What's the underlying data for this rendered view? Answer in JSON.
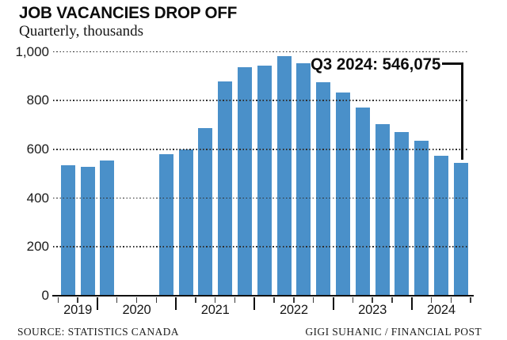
{
  "header": {
    "title": "JOB VACANCIES DROP OFF",
    "subtitle": "Quarterly, thousands"
  },
  "annotation": {
    "label": "Q3 2024: 546,075"
  },
  "footer": {
    "source": "SOURCE: STATISTICS CANADA",
    "credit": "GIGI SUHANIC / FINANCIAL POST"
  },
  "colors": {
    "bar": "#4a90c9",
    "text": "#111111",
    "grid": "#2e2e2e",
    "annotation_line": "#0d0d0d"
  },
  "chart_data": {
    "type": "bar",
    "title": "JOB VACANCIES DROP OFF",
    "subtitle": "Quarterly, thousands",
    "unit": "thousands",
    "x": [
      "Q3 2019",
      "Q4 2019",
      "Q1 2020",
      "Q4 2020",
      "Q1 2021",
      "Q2 2021",
      "Q3 2021",
      "Q4 2021",
      "Q1 2022",
      "Q2 2022",
      "Q3 2022",
      "Q4 2022",
      "Q1 2023",
      "Q2 2023",
      "Q3 2023",
      "Q4 2023",
      "Q1 2024",
      "Q2 2024",
      "Q3 2024"
    ],
    "values": [
      535,
      527,
      556,
      579,
      600,
      688,
      880,
      937,
      945,
      983,
      954,
      876,
      832,
      772,
      703,
      670,
      634,
      573,
      546.075
    ],
    "missing_quarters": [
      "Q2 2020",
      "Q3 2020"
    ],
    "ylim": [
      0,
      1000
    ],
    "yticks": [
      0,
      200,
      400,
      600,
      800,
      1000
    ],
    "year_labels": [
      "2019",
      "2020",
      "2021",
      "2022",
      "2023",
      "2024"
    ],
    "grid": "horizontal-dotted",
    "legend": "none",
    "annotation": {
      "text": "Q3 2024: 546,075",
      "target_x": "Q3 2024",
      "target_value": 546.075
    },
    "bar_color": "#4a90c9"
  }
}
